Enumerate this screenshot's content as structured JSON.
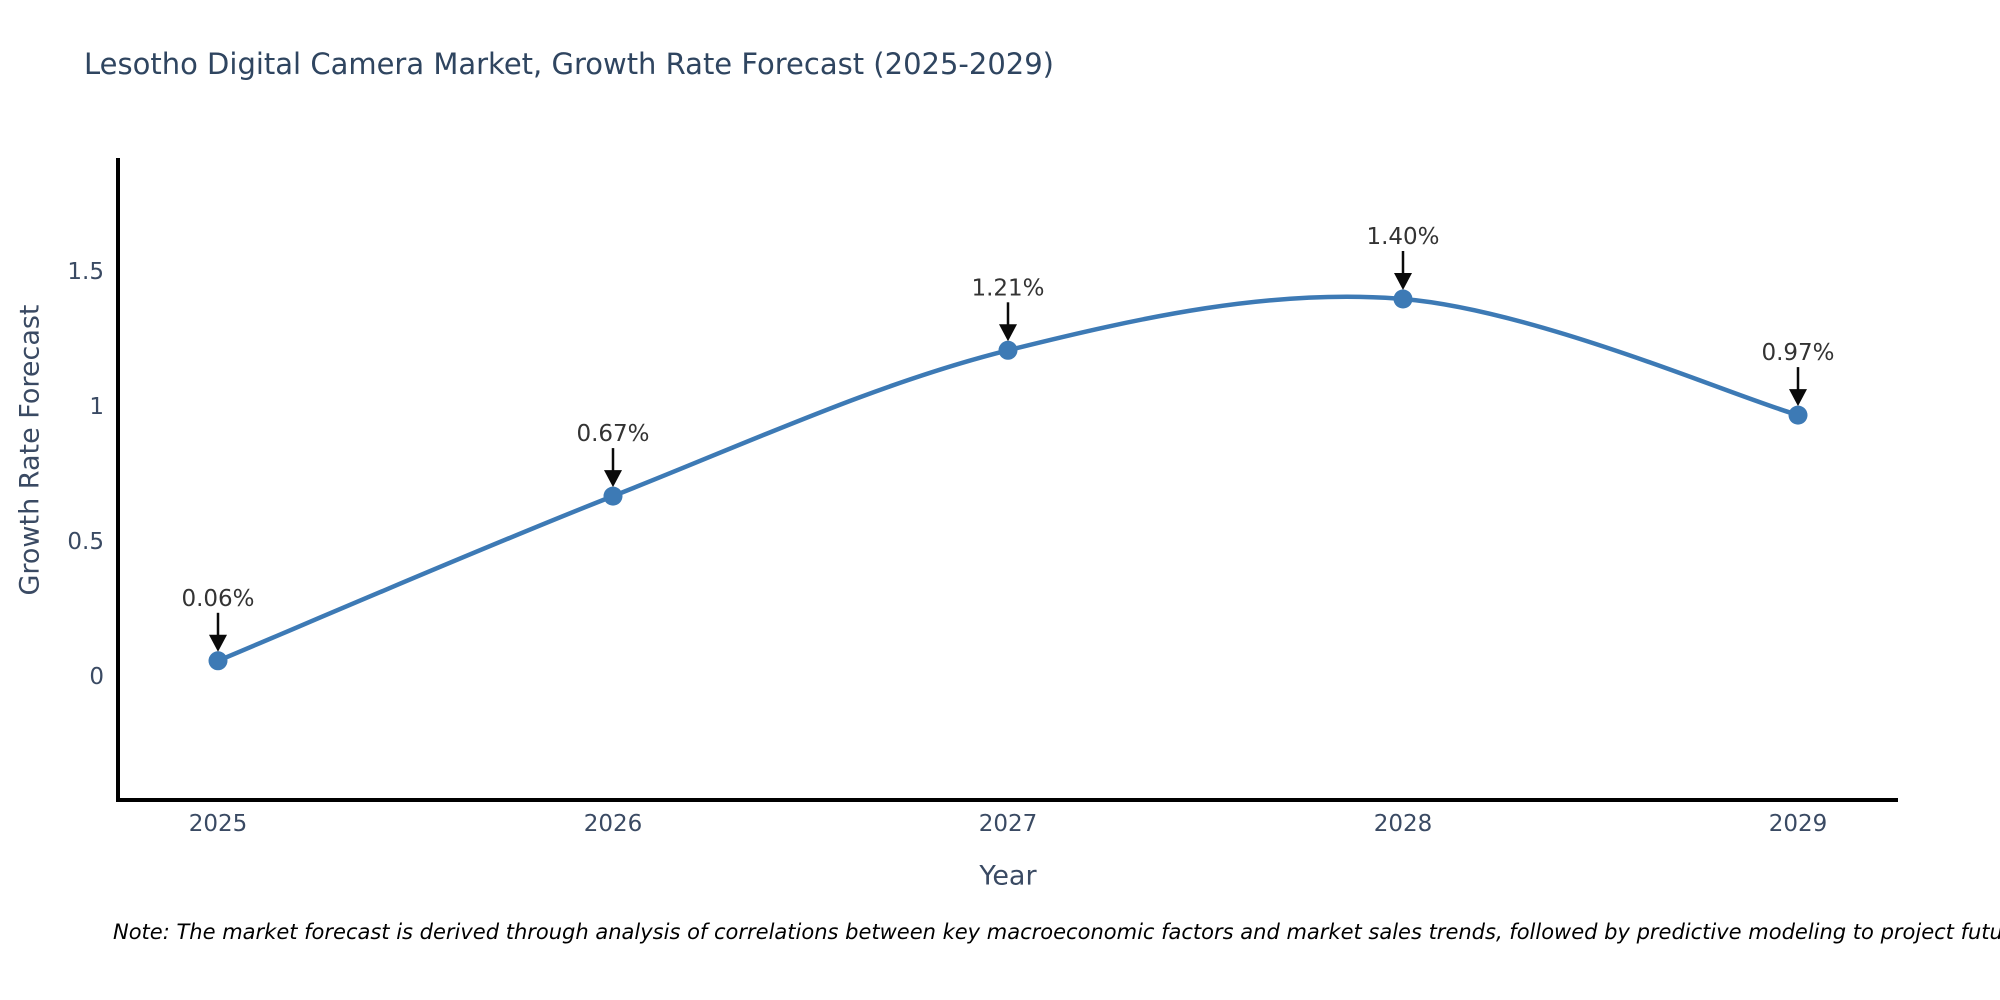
{
  "title": "Lesotho Digital Camera Market, Growth Rate Forecast (2025-2029)",
  "note": "Note: The market forecast is derived through analysis of correlations between key macroeconomic factors and market sales trends, followed by predictive modeling to project future sales",
  "chart_data": {
    "type": "line",
    "title": "Lesotho Digital Camera Market, Growth Rate Forecast (2025-2029)",
    "xlabel": "Year",
    "ylabel": "Growth Rate Forecast",
    "x": [
      2025,
      2026,
      2027,
      2028,
      2029
    ],
    "values": [
      0.06,
      0.67,
      1.21,
      1.4,
      0.97
    ],
    "point_labels": [
      "0.06%",
      "0.67%",
      "1.21%",
      "1.40%",
      "0.97%"
    ],
    "x_tick_labels": [
      "2025",
      "2026",
      "2027",
      "2028",
      "2029"
    ],
    "y_ticks": [
      0,
      0.5,
      1,
      1.5
    ],
    "y_tick_labels": [
      "0",
      "0.5",
      "1",
      "1.5"
    ],
    "ylim": [
      -0.46,
      1.9
    ],
    "grid": false,
    "legend": "none",
    "colors": {
      "line": "#3d7ab5",
      "marker": "#3d7ab5",
      "spine": "#000000",
      "tick_text": "#3a4a63",
      "axis_title_text": "#3a4a63",
      "annotation_text": "#333333",
      "annotation_arrow": "#0a0a0a",
      "background": "#ffffff"
    }
  }
}
